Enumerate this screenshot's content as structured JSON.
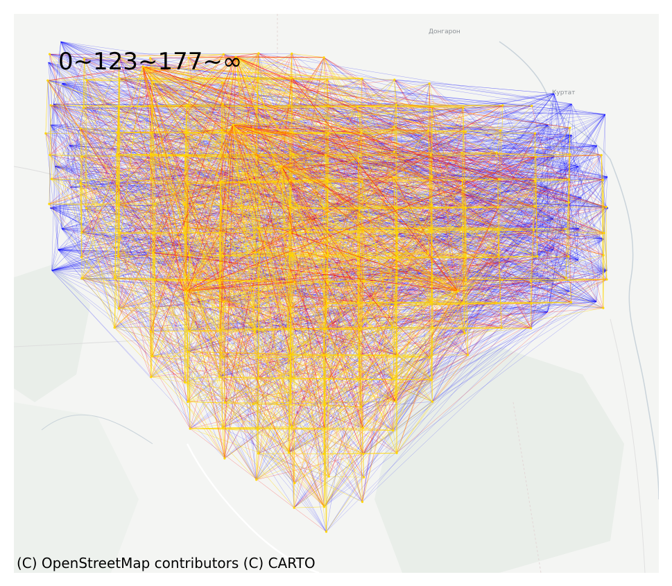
{
  "map": {
    "legend_label": "0~123~177~∞",
    "attribution": "(C) OpenStreetMap contributors (C) CARTO",
    "places": [
      {
        "name": "Донгарон"
      },
      {
        "name": "Куртат"
      }
    ],
    "colors": {
      "background": "#f4f5f3",
      "water": "#c9d6dd",
      "green": "#e6ebe6",
      "road": "#ffffff",
      "low": "#0000ff",
      "mid": "#ff0000",
      "high": "#ffd700"
    },
    "bins": [
      "0",
      "123",
      "177",
      "∞"
    ]
  }
}
